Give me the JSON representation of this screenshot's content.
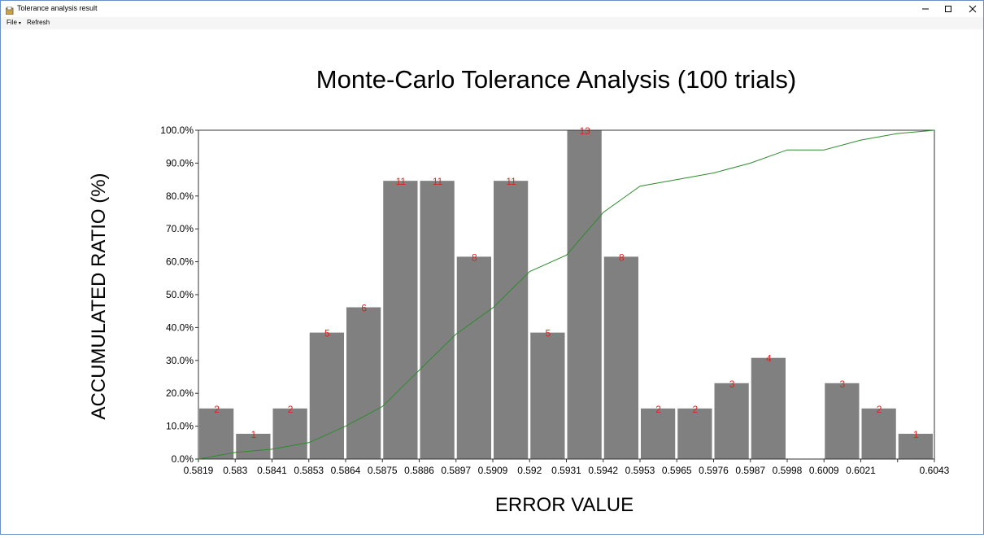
{
  "window": {
    "title": "Tolerance analysis result"
  },
  "menu": {
    "file": "File",
    "refresh": "Refresh"
  },
  "colors": {
    "bar": "#808080",
    "line": "#2e8b2e",
    "bar_label": "#e02020",
    "border": "#6b8fc7"
  },
  "chart_data": {
    "type": "bar",
    "title": "Monte-Carlo Tolerance Analysis (100 trials)",
    "xlabel": "ERROR VALUE",
    "ylabel": "ACCUMULATED RATIO (%)",
    "xticks": [
      "0.5819",
      "0.583",
      "0.5841",
      "0.5853",
      "0.5864",
      "0.5875",
      "0.5886",
      "0.5897",
      "0.5909",
      "0.592",
      "0.5931",
      "0.5942",
      "0.5953",
      "0.5965",
      "0.5976",
      "0.5987",
      "0.5998",
      "0.6009",
      "0.6021",
      "",
      "0.6043"
    ],
    "yticks": [
      "0.0%",
      "10.0%",
      "20.0%",
      "30.0%",
      "40.0%",
      "50.0%",
      "60.0%",
      "70.0%",
      "80.0%",
      "90.0%",
      "100.0%"
    ],
    "ylim": [
      0,
      100
    ],
    "counts": [
      2,
      1,
      2,
      5,
      6,
      11,
      11,
      8,
      11,
      5,
      13,
      8,
      2,
      2,
      3,
      4,
      0,
      3,
      2,
      1
    ],
    "cumulative_percent": [
      0,
      2,
      3,
      5,
      10,
      16,
      27,
      38,
      46,
      57,
      62,
      75,
      83,
      85,
      87,
      90,
      94,
      94,
      97,
      99,
      100
    ],
    "grid": false
  }
}
